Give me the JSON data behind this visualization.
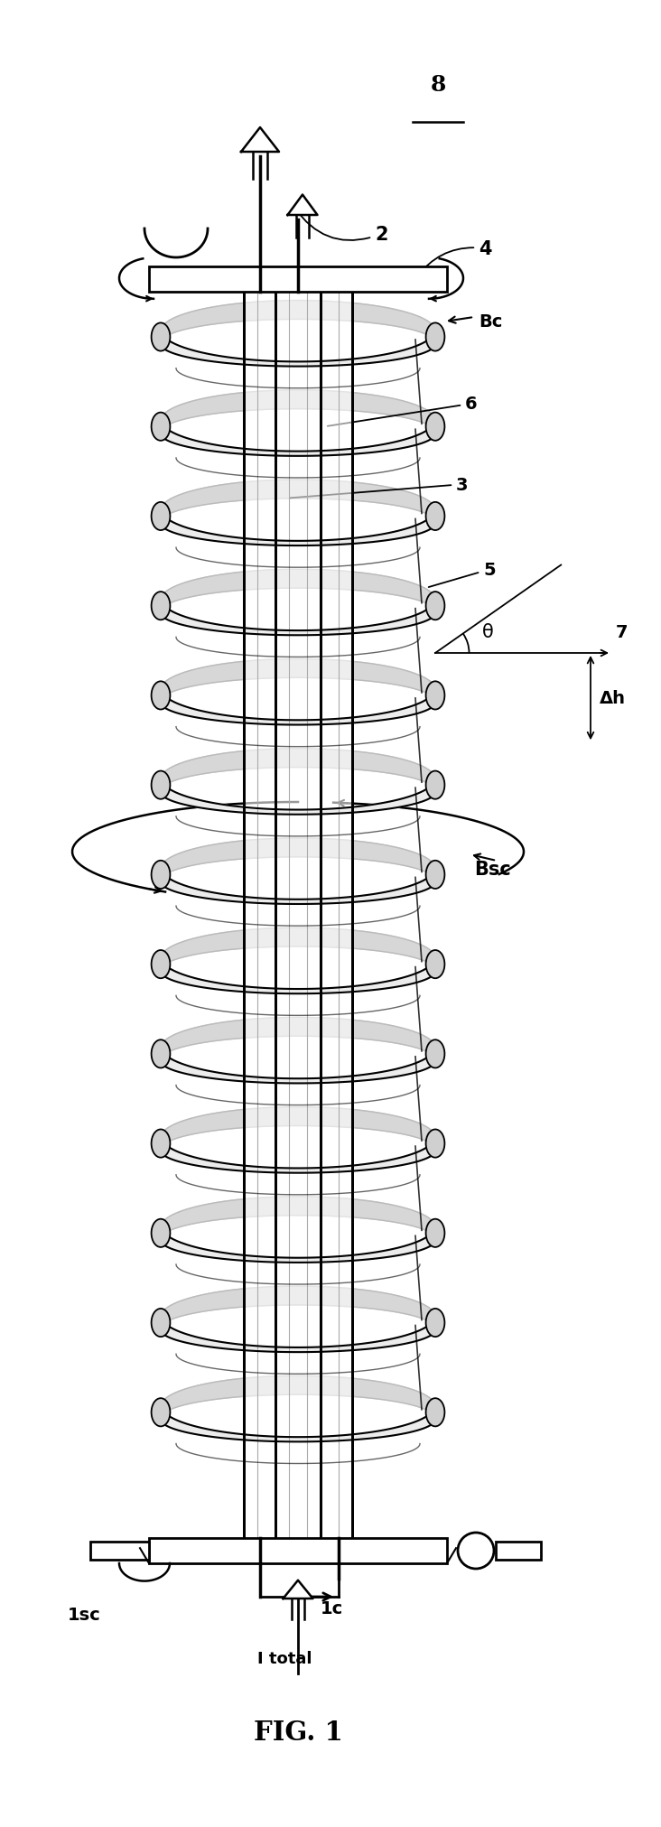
{
  "fig_label": "FIG. 1",
  "label_8": "8",
  "label_2": "2",
  "label_3": "3",
  "label_4": "4",
  "label_5": "5",
  "label_6": "6",
  "label_7": "7",
  "label_Bc": "Bc",
  "label_Bsc": "Bsc",
  "label_theta": "θ",
  "label_dh": "Δh",
  "label_1sc": "1sc",
  "label_1c": "1c",
  "label_Itotal": "I total",
  "bg_color": "#ffffff",
  "line_color": "#000000",
  "gray_color": "#888888",
  "light_gray": "#bbbbbb",
  "tube_gray": "#d0d0d0"
}
